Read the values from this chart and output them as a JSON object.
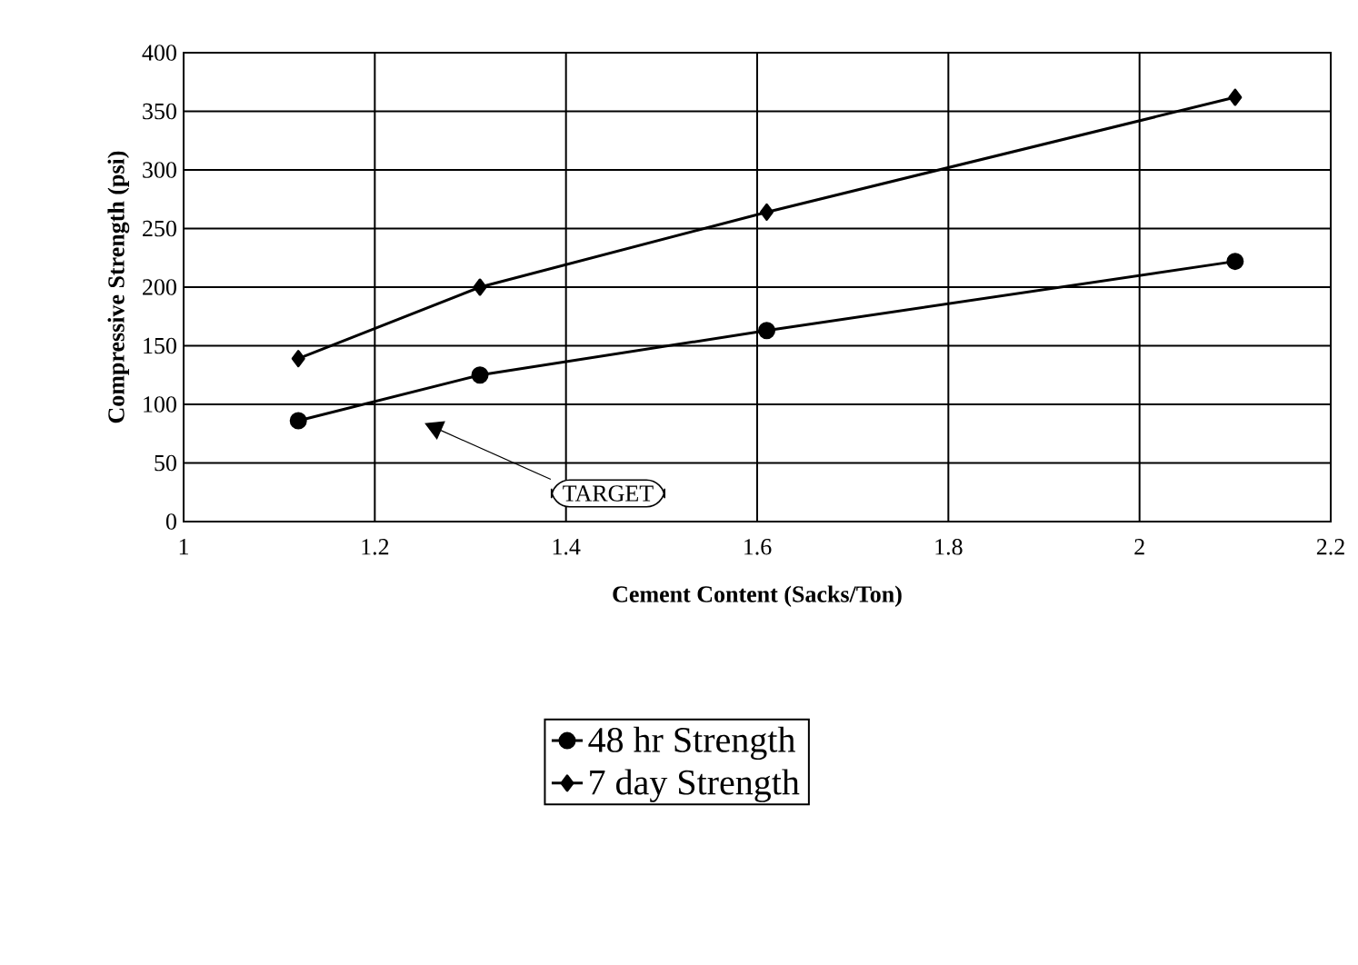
{
  "chart_data": {
    "type": "line",
    "xlabel": "Cement Content (Sacks/Ton)",
    "ylabel": "Compressive Strength (psi)",
    "xlim": [
      1,
      2.2
    ],
    "xticks": [
      1,
      1.2,
      1.4,
      1.6,
      1.8,
      2,
      2.2
    ],
    "ylim": [
      0,
      400
    ],
    "yticks": [
      0,
      50,
      100,
      150,
      200,
      250,
      300,
      350,
      400
    ],
    "grid": true,
    "legend": "bottom",
    "series": [
      {
        "name": "48 hr Strength",
        "color": "#000000",
        "marker": "circle",
        "x": [
          1.12,
          1.31,
          1.61,
          2.1
        ],
        "values": [
          86,
          125,
          163,
          222
        ]
      },
      {
        "name": "7 day Strength",
        "color": "#000000",
        "marker": "diamond",
        "x": [
          1.12,
          1.31,
          1.61,
          2.1
        ],
        "values": [
          139,
          200,
          264,
          362
        ]
      }
    ],
    "annotations": [
      "TARGET"
    ]
  }
}
